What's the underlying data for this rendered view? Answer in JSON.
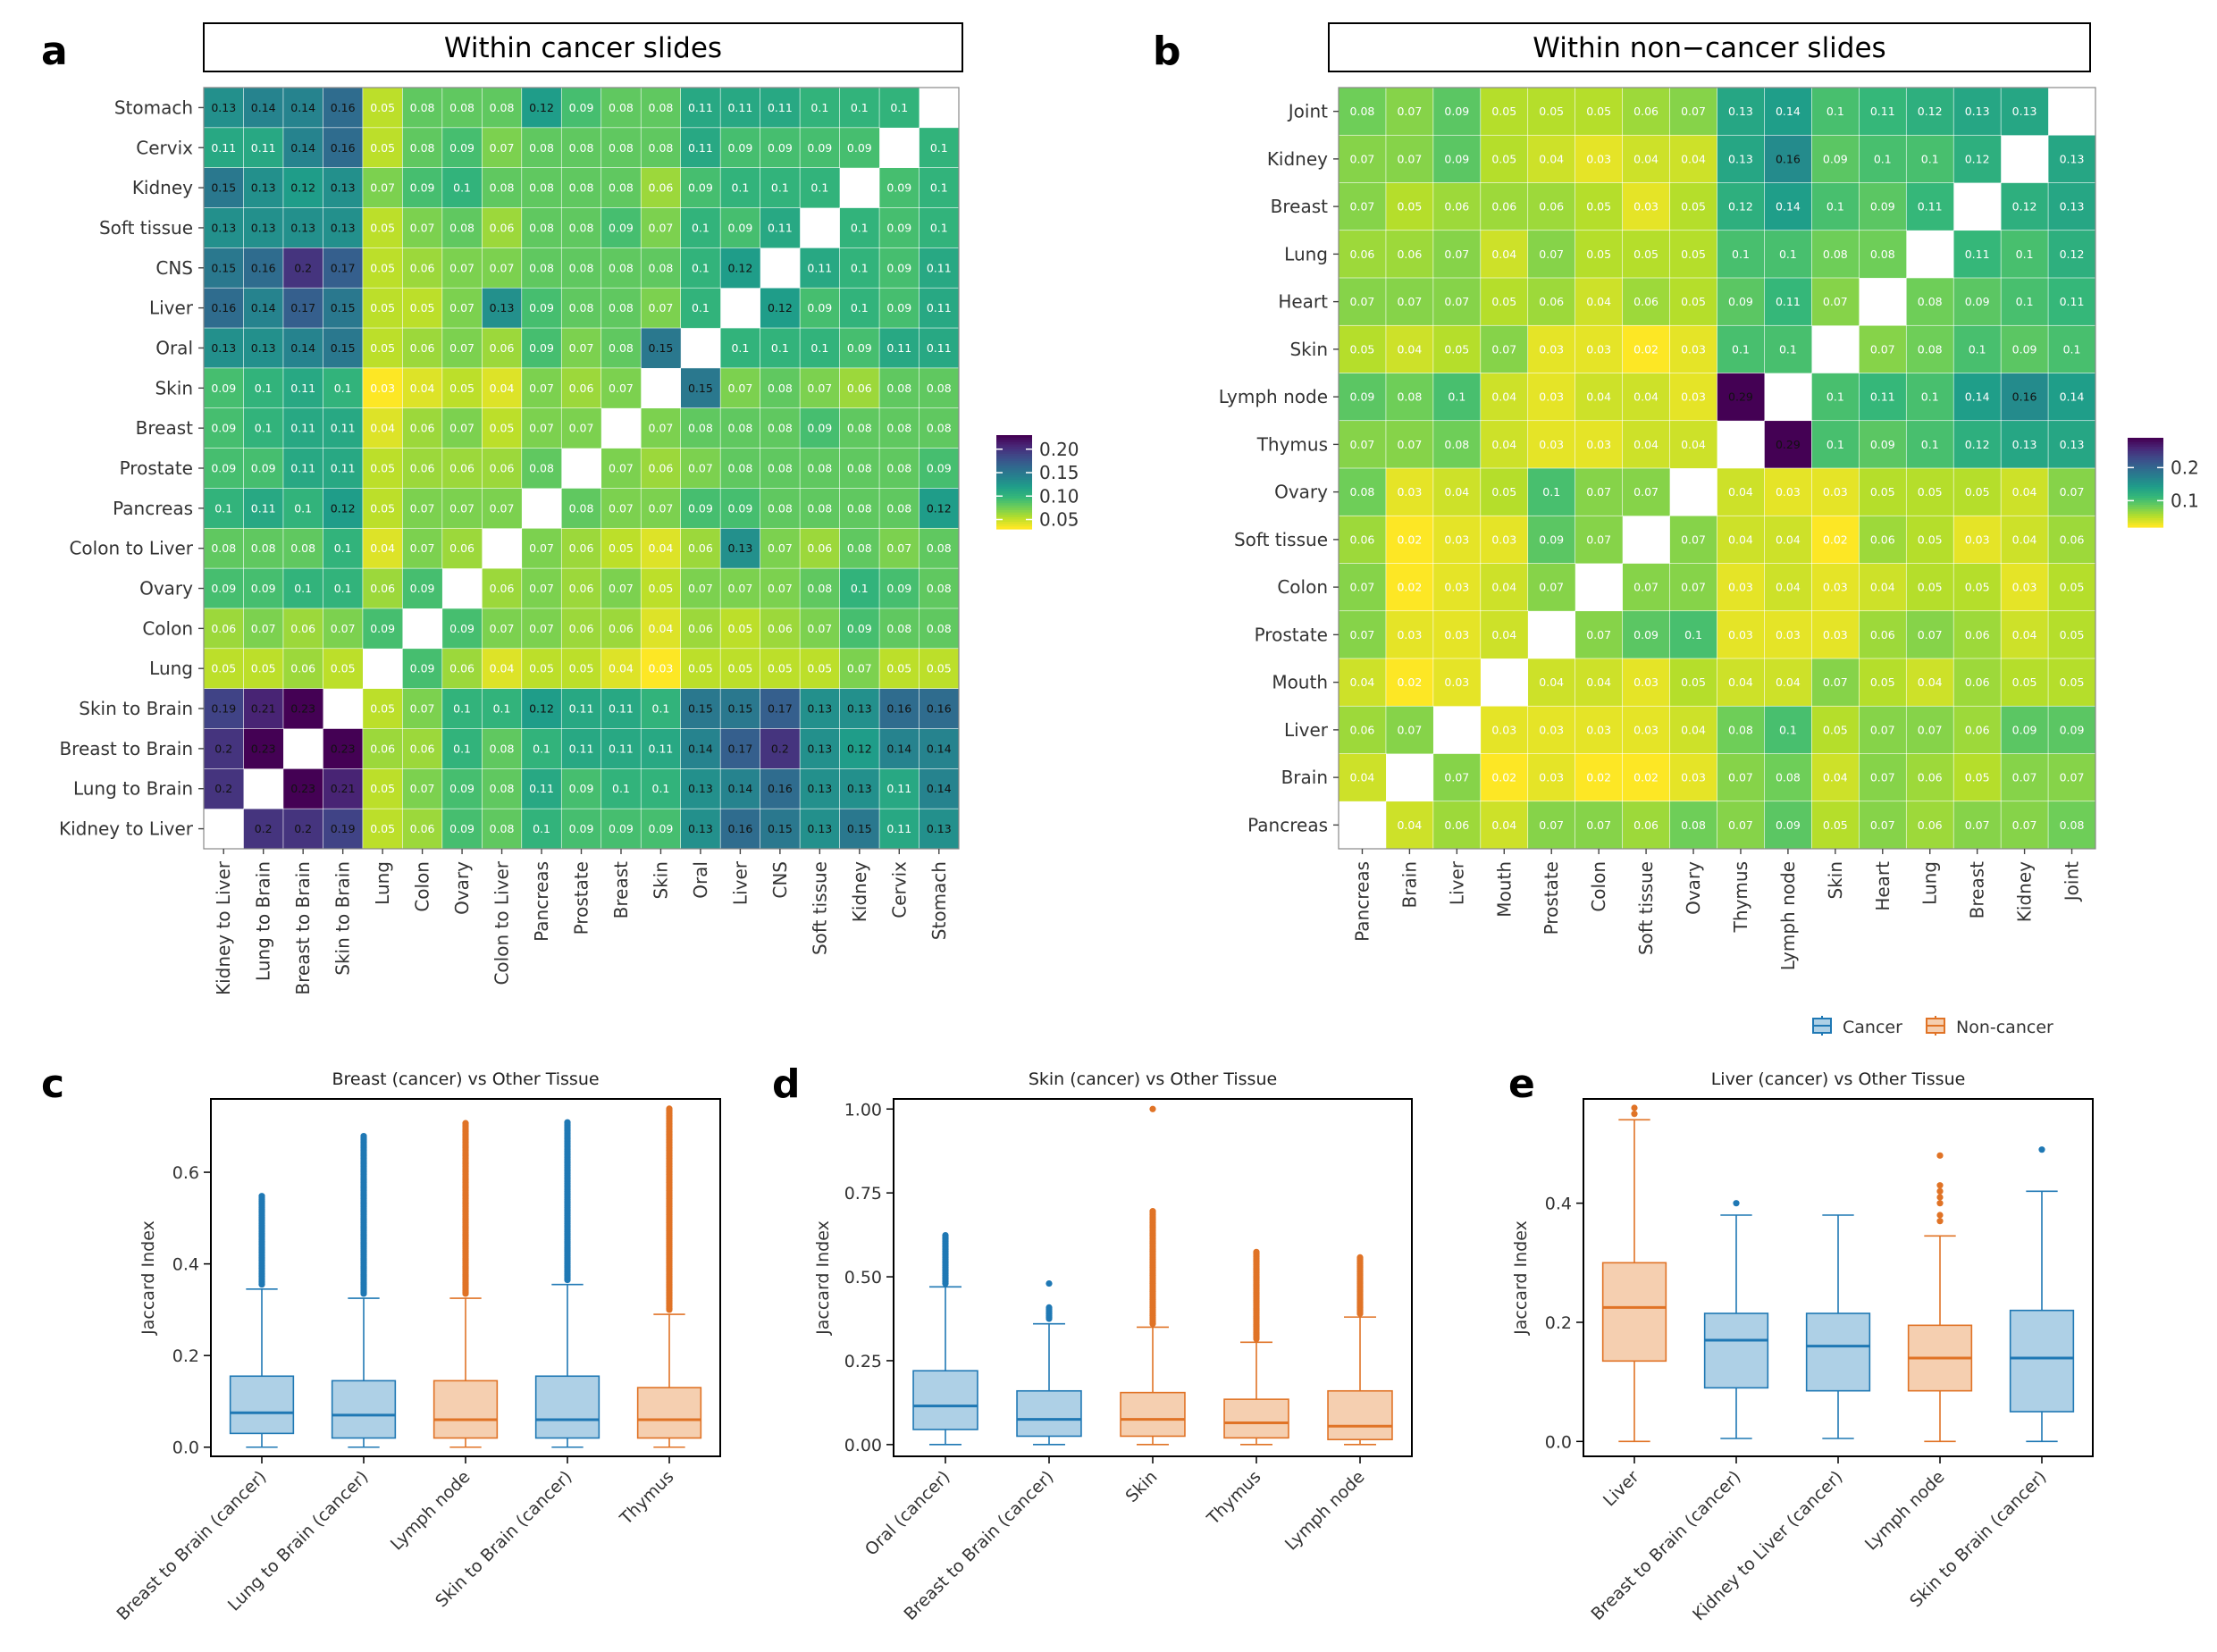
{
  "colors": {
    "cancer_fill": "#aed0e6",
    "cancer_line": "#1f78b4",
    "noncancer_fill": "#f5cfb0",
    "noncancer_line": "#e07326",
    "viridis": [
      "#440154",
      "#482878",
      "#3e4a89",
      "#31688e",
      "#26828e",
      "#1f9e89",
      "#35b779",
      "#6ece58",
      "#b5de2b",
      "#fde725"
    ]
  },
  "panels": {
    "a": "a",
    "b": "b",
    "c": "c",
    "d": "d",
    "e": "e"
  },
  "legend": {
    "cancer": "Cancer",
    "noncancer": "Non-cancer"
  },
  "chart_data": [
    {
      "id": "a",
      "type": "heatmap",
      "title": "Within cancer slides",
      "rows": [
        "Stomach",
        "Cervix",
        "Kidney",
        "Soft tissue",
        "CNS",
        "Liver",
        "Oral",
        "Skin",
        "Breast",
        "Prostate",
        "Pancreas",
        "Colon to Liver",
        "Ovary",
        "Colon",
        "Lung",
        "Skin to Brain",
        "Breast to Brain",
        "Lung to Brain",
        "Kidney to Liver"
      ],
      "cols": [
        "Kidney to Liver",
        "Lung to Brain",
        "Breast to Brain",
        "Skin to Brain",
        "Lung",
        "Colon",
        "Ovary",
        "Colon to Liver",
        "Pancreas",
        "Prostate",
        "Breast",
        "Skin",
        "Oral",
        "Liver",
        "CNS",
        "Soft tissue",
        "Kidney",
        "Cervix",
        "Stomach"
      ],
      "values": [
        [
          0.13,
          0.14,
          0.14,
          0.16,
          0.05,
          0.08,
          0.08,
          0.08,
          0.12,
          0.09,
          0.08,
          0.08,
          0.11,
          0.11,
          0.11,
          0.1,
          0.1,
          0.1,
          null
        ],
        [
          0.11,
          0.11,
          0.14,
          0.16,
          0.05,
          0.08,
          0.09,
          0.07,
          0.08,
          0.08,
          0.08,
          0.08,
          0.11,
          0.09,
          0.09,
          0.09,
          0.09,
          null,
          0.1
        ],
        [
          0.15,
          0.13,
          0.12,
          0.13,
          0.07,
          0.09,
          0.1,
          0.08,
          0.08,
          0.08,
          0.08,
          0.06,
          0.09,
          0.1,
          0.1,
          0.1,
          null,
          0.09,
          0.1
        ],
        [
          0.13,
          0.13,
          0.13,
          0.13,
          0.05,
          0.07,
          0.08,
          0.06,
          0.08,
          0.08,
          0.09,
          0.07,
          0.1,
          0.09,
          0.11,
          null,
          0.1,
          0.09,
          0.1
        ],
        [
          0.15,
          0.16,
          0.2,
          0.17,
          0.05,
          0.06,
          0.07,
          0.07,
          0.08,
          0.08,
          0.08,
          0.08,
          0.1,
          0.12,
          null,
          0.11,
          0.1,
          0.09,
          0.11
        ],
        [
          0.16,
          0.14,
          0.17,
          0.15,
          0.05,
          0.05,
          0.07,
          0.13,
          0.09,
          0.08,
          0.08,
          0.07,
          0.1,
          null,
          0.12,
          0.09,
          0.1,
          0.09,
          0.11
        ],
        [
          0.13,
          0.13,
          0.14,
          0.15,
          0.05,
          0.06,
          0.07,
          0.06,
          0.09,
          0.07,
          0.08,
          0.15,
          null,
          0.1,
          0.1,
          0.1,
          0.09,
          0.11,
          0.11
        ],
        [
          0.09,
          0.1,
          0.11,
          0.1,
          0.03,
          0.04,
          0.05,
          0.04,
          0.07,
          0.06,
          0.07,
          null,
          0.15,
          0.07,
          0.08,
          0.07,
          0.06,
          0.08,
          0.08
        ],
        [
          0.09,
          0.1,
          0.11,
          0.11,
          0.04,
          0.06,
          0.07,
          0.05,
          0.07,
          0.07,
          null,
          0.07,
          0.08,
          0.08,
          0.08,
          0.09,
          0.08,
          0.08,
          0.08
        ],
        [
          0.09,
          0.09,
          0.11,
          0.11,
          0.05,
          0.06,
          0.06,
          0.06,
          0.08,
          null,
          0.07,
          0.06,
          0.07,
          0.08,
          0.08,
          0.08,
          0.08,
          0.08,
          0.09
        ],
        [
          0.1,
          0.11,
          0.1,
          0.12,
          0.05,
          0.07,
          0.07,
          0.07,
          null,
          0.08,
          0.07,
          0.07,
          0.09,
          0.09,
          0.08,
          0.08,
          0.08,
          0.08,
          0.12
        ],
        [
          0.08,
          0.08,
          0.08,
          0.1,
          0.04,
          0.07,
          0.06,
          null,
          0.07,
          0.06,
          0.05,
          0.04,
          0.06,
          0.13,
          0.07,
          0.06,
          0.08,
          0.07,
          0.08
        ],
        [
          0.09,
          0.09,
          0.1,
          0.1,
          0.06,
          0.09,
          null,
          0.06,
          0.07,
          0.06,
          0.07,
          0.05,
          0.07,
          0.07,
          0.07,
          0.08,
          0.1,
          0.09,
          0.08
        ],
        [
          0.06,
          0.07,
          0.06,
          0.07,
          0.09,
          null,
          0.09,
          0.07,
          0.07,
          0.06,
          0.06,
          0.04,
          0.06,
          0.05,
          0.06,
          0.07,
          0.09,
          0.08,
          0.08
        ],
        [
          0.05,
          0.05,
          0.06,
          0.05,
          null,
          0.09,
          0.06,
          0.04,
          0.05,
          0.05,
          0.04,
          0.03,
          0.05,
          0.05,
          0.05,
          0.05,
          0.07,
          0.05,
          0.05
        ],
        [
          0.19,
          0.21,
          0.23,
          null,
          0.05,
          0.07,
          0.1,
          0.1,
          0.12,
          0.11,
          0.11,
          0.1,
          0.15,
          0.15,
          0.17,
          0.13,
          0.13,
          0.16,
          0.16
        ],
        [
          0.2,
          0.23,
          null,
          0.23,
          0.06,
          0.06,
          0.1,
          0.08,
          0.1,
          0.11,
          0.11,
          0.11,
          0.14,
          0.17,
          0.2,
          0.13,
          0.12,
          0.14,
          0.14
        ],
        [
          0.2,
          null,
          0.23,
          0.21,
          0.05,
          0.07,
          0.09,
          0.08,
          0.11,
          0.09,
          0.1,
          0.1,
          0.13,
          0.14,
          0.16,
          0.13,
          0.13,
          0.11,
          0.14
        ],
        [
          null,
          0.2,
          0.2,
          0.19,
          0.05,
          0.06,
          0.09,
          0.08,
          0.1,
          0.09,
          0.09,
          0.09,
          0.13,
          0.16,
          0.15,
          0.13,
          0.15,
          0.11,
          0.13
        ]
      ],
      "color_range": [
        0.03,
        0.23
      ],
      "legend_ticks": [
        0.2,
        0.15,
        0.1,
        0.05
      ],
      "legend_labels": [
        "0.20",
        "0.15",
        "0.10",
        "0.05"
      ]
    },
    {
      "id": "b",
      "type": "heatmap",
      "title": "Within non−cancer slides",
      "rows": [
        "Joint",
        "Kidney",
        "Breast",
        "Lung",
        "Heart",
        "Skin",
        "Lymph node",
        "Thymus",
        "Ovary",
        "Soft tissue",
        "Colon",
        "Prostate",
        "Mouth",
        "Liver",
        "Brain",
        "Pancreas"
      ],
      "cols": [
        "Pancreas",
        "Brain",
        "Liver",
        "Mouth",
        "Prostate",
        "Colon",
        "Soft tissue",
        "Ovary",
        "Thymus",
        "Lymph node",
        "Skin",
        "Heart",
        "Lung",
        "Breast",
        "Kidney",
        "Joint"
      ],
      "values": [
        [
          0.08,
          0.07,
          0.09,
          0.05,
          0.05,
          0.05,
          0.06,
          0.07,
          0.13,
          0.14,
          0.1,
          0.11,
          0.12,
          0.13,
          0.13,
          null
        ],
        [
          0.07,
          0.07,
          0.09,
          0.05,
          0.04,
          0.03,
          0.04,
          0.04,
          0.13,
          0.16,
          0.09,
          0.1,
          0.1,
          0.12,
          null,
          0.13
        ],
        [
          0.07,
          0.05,
          0.06,
          0.06,
          0.06,
          0.05,
          0.03,
          0.05,
          0.12,
          0.14,
          0.1,
          0.09,
          0.11,
          null,
          0.12,
          0.13
        ],
        [
          0.06,
          0.06,
          0.07,
          0.04,
          0.07,
          0.05,
          0.05,
          0.05,
          0.1,
          0.1,
          0.08,
          0.08,
          null,
          0.11,
          0.1,
          0.12
        ],
        [
          0.07,
          0.07,
          0.07,
          0.05,
          0.06,
          0.04,
          0.06,
          0.05,
          0.09,
          0.11,
          0.07,
          null,
          0.08,
          0.09,
          0.1,
          0.11
        ],
        [
          0.05,
          0.04,
          0.05,
          0.07,
          0.03,
          0.03,
          0.02,
          0.03,
          0.1,
          0.1,
          null,
          0.07,
          0.08,
          0.1,
          0.09,
          0.1
        ],
        [
          0.09,
          0.08,
          0.1,
          0.04,
          0.03,
          0.04,
          0.04,
          0.03,
          0.29,
          null,
          0.1,
          0.11,
          0.1,
          0.14,
          0.16,
          0.14
        ],
        [
          0.07,
          0.07,
          0.08,
          0.04,
          0.03,
          0.03,
          0.04,
          0.04,
          null,
          0.29,
          0.1,
          0.09,
          0.1,
          0.12,
          0.13,
          0.13
        ],
        [
          0.08,
          0.03,
          0.04,
          0.05,
          0.1,
          0.07,
          0.07,
          null,
          0.04,
          0.03,
          0.03,
          0.05,
          0.05,
          0.05,
          0.04,
          0.07
        ],
        [
          0.06,
          0.02,
          0.03,
          0.03,
          0.09,
          0.07,
          null,
          0.07,
          0.04,
          0.04,
          0.02,
          0.06,
          0.05,
          0.03,
          0.04,
          0.06
        ],
        [
          0.07,
          0.02,
          0.03,
          0.04,
          0.07,
          null,
          0.07,
          0.07,
          0.03,
          0.04,
          0.03,
          0.04,
          0.05,
          0.05,
          0.03,
          0.05
        ],
        [
          0.07,
          0.03,
          0.03,
          0.04,
          null,
          0.07,
          0.09,
          0.1,
          0.03,
          0.03,
          0.03,
          0.06,
          0.07,
          0.06,
          0.04,
          0.05
        ],
        [
          0.04,
          0.02,
          0.03,
          null,
          0.04,
          0.04,
          0.03,
          0.05,
          0.04,
          0.04,
          0.07,
          0.05,
          0.04,
          0.06,
          0.05,
          0.05
        ],
        [
          0.06,
          0.07,
          null,
          0.03,
          0.03,
          0.03,
          0.03,
          0.04,
          0.08,
          0.1,
          0.05,
          0.07,
          0.07,
          0.06,
          0.09,
          0.09
        ],
        [
          0.04,
          null,
          0.07,
          0.02,
          0.03,
          0.02,
          0.02,
          0.03,
          0.07,
          0.08,
          0.04,
          0.07,
          0.06,
          0.05,
          0.07,
          0.07
        ],
        [
          null,
          0.04,
          0.06,
          0.04,
          0.07,
          0.07,
          0.06,
          0.08,
          0.07,
          0.09,
          0.05,
          0.07,
          0.06,
          0.07,
          0.07,
          0.08
        ]
      ],
      "color_range": [
        0.02,
        0.29
      ],
      "legend_ticks": [
        0.2,
        0.1
      ],
      "legend_labels": [
        "0.2",
        "0.1"
      ]
    },
    {
      "id": "c",
      "type": "box",
      "title": "Breast (cancer) vs Other Tissue",
      "ylabel": "Jaccard Index",
      "ylim": [
        -0.02,
        0.76
      ],
      "yticks": [
        0.0,
        0.2,
        0.4,
        0.6
      ],
      "ytick_labels": [
        "0.0",
        "0.2",
        "0.4",
        "0.6"
      ],
      "boxes": [
        {
          "label": "Breast to Brain (cancer)",
          "group": "cancer",
          "min": 0.0,
          "q1": 0.03,
          "median": 0.075,
          "q3": 0.155,
          "max": 0.345,
          "outliers_from": 0.355,
          "outliers_to": 0.55
        },
        {
          "label": "Lung to Brain (cancer)",
          "group": "cancer",
          "min": 0.0,
          "q1": 0.02,
          "median": 0.07,
          "q3": 0.145,
          "max": 0.325,
          "outliers_from": 0.335,
          "outliers_to": 0.68
        },
        {
          "label": "Lymph node",
          "group": "noncancer",
          "min": 0.0,
          "q1": 0.02,
          "median": 0.06,
          "q3": 0.145,
          "max": 0.325,
          "outliers_from": 0.335,
          "outliers_to": 0.71
        },
        {
          "label": "Skin to Brain (cancer)",
          "group": "cancer",
          "min": 0.0,
          "q1": 0.02,
          "median": 0.06,
          "q3": 0.155,
          "max": 0.355,
          "outliers_from": 0.365,
          "outliers_to": 0.71
        },
        {
          "label": "Thymus",
          "group": "noncancer",
          "min": 0.0,
          "q1": 0.02,
          "median": 0.06,
          "q3": 0.13,
          "max": 0.29,
          "outliers_from": 0.3,
          "outliers_to": 0.74
        }
      ]
    },
    {
      "id": "d",
      "type": "box",
      "title": "Skin (cancer) vs Other Tissue",
      "ylabel": "Jaccard Index",
      "ylim": [
        -0.035,
        1.03
      ],
      "yticks": [
        0.0,
        0.25,
        0.5,
        0.75,
        1.0
      ],
      "ytick_labels": [
        "0.00",
        "0.25",
        "0.50",
        "0.75",
        "1.00"
      ],
      "boxes": [
        {
          "label": "Oral (cancer)",
          "group": "cancer",
          "min": 0.0,
          "q1": 0.045,
          "median": 0.115,
          "q3": 0.22,
          "max": 0.47,
          "outliers_from": 0.48,
          "outliers_to": 0.625
        },
        {
          "label": "Breast to Brain (cancer)",
          "group": "cancer",
          "min": 0.0,
          "q1": 0.025,
          "median": 0.075,
          "q3": 0.16,
          "max": 0.36,
          "outliers_from": 0.375,
          "outliers_to": 0.41,
          "extra_outliers": [
            0.48
          ]
        },
        {
          "label": "Skin",
          "group": "noncancer",
          "min": 0.0,
          "q1": 0.025,
          "median": 0.075,
          "q3": 0.155,
          "max": 0.35,
          "outliers_from": 0.36,
          "outliers_to": 0.7,
          "extra_outliers": [
            1.0
          ]
        },
        {
          "label": "Thymus",
          "group": "noncancer",
          "min": 0.0,
          "q1": 0.02,
          "median": 0.065,
          "q3": 0.135,
          "max": 0.305,
          "outliers_from": 0.315,
          "outliers_to": 0.575
        },
        {
          "label": "Lymph node",
          "group": "noncancer",
          "min": 0.0,
          "q1": 0.015,
          "median": 0.055,
          "q3": 0.16,
          "max": 0.38,
          "outliers_from": 0.39,
          "outliers_to": 0.56
        }
      ]
    },
    {
      "id": "e",
      "type": "box",
      "title": "Liver (cancer) vs Other Tissue",
      "ylabel": "Jaccard Index",
      "ylim": [
        -0.025,
        0.575
      ],
      "yticks": [
        0.0,
        0.2,
        0.4
      ],
      "ytick_labels": [
        "0.0",
        "0.2",
        "0.4"
      ],
      "boxes": [
        {
          "label": "Liver",
          "group": "noncancer",
          "min": 0.0,
          "q1": 0.135,
          "median": 0.225,
          "q3": 0.3,
          "max": 0.54,
          "extra_outliers": [
            0.55,
            0.56
          ]
        },
        {
          "label": "Breast to Brain (cancer)",
          "group": "cancer",
          "min": 0.005,
          "q1": 0.09,
          "median": 0.17,
          "q3": 0.215,
          "max": 0.38,
          "extra_outliers": [
            0.4
          ]
        },
        {
          "label": "Kidney to Liver (cancer)",
          "group": "cancer",
          "min": 0.005,
          "q1": 0.085,
          "median": 0.16,
          "q3": 0.215,
          "max": 0.38
        },
        {
          "label": "Lymph node",
          "group": "noncancer",
          "min": 0.0,
          "q1": 0.085,
          "median": 0.14,
          "q3": 0.195,
          "max": 0.345,
          "extra_outliers": [
            0.37,
            0.38,
            0.4,
            0.41,
            0.42,
            0.43,
            0.48
          ]
        },
        {
          "label": "Skin to Brain (cancer)",
          "group": "cancer",
          "min": 0.0,
          "q1": 0.05,
          "median": 0.14,
          "q3": 0.22,
          "max": 0.42,
          "extra_outliers": [
            0.49
          ]
        }
      ]
    }
  ]
}
